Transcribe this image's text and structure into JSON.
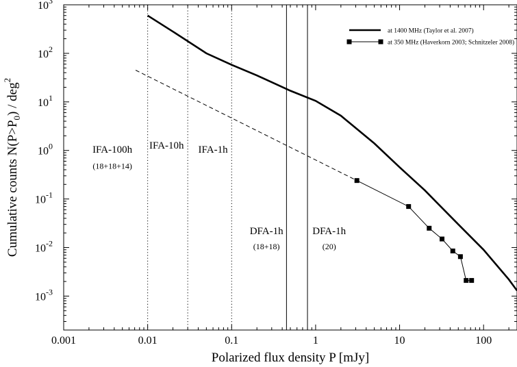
{
  "chart_data": {
    "type": "line",
    "x_scale": "log",
    "y_scale": "log",
    "xlim": [
      0.001,
      250
    ],
    "ylim": [
      0.0002,
      1000
    ],
    "xlabel": "Polarized flux density  P  [mJy]",
    "ylabel_main": "Cumulative counts  N(P>P",
    "ylabel_sub": "0",
    "ylabel_tail": ")  / deg",
    "ylabel_sup": "2",
    "x_ticks": [
      {
        "value": 0.001,
        "label": "0.001"
      },
      {
        "value": 0.01,
        "label": "0.01"
      },
      {
        "value": 0.1,
        "label": "0.1"
      },
      {
        "value": 1,
        "label": "1"
      },
      {
        "value": 10,
        "label": "10"
      },
      {
        "value": 100,
        "label": "100"
      }
    ],
    "y_ticks": [
      {
        "value": 0.001,
        "base": "10",
        "exp": "-3"
      },
      {
        "value": 0.01,
        "base": "10",
        "exp": "-2"
      },
      {
        "value": 0.1,
        "base": "10",
        "exp": "-1"
      },
      {
        "value": 1,
        "base": "10",
        "exp": "0"
      },
      {
        "value": 10,
        "base": "10",
        "exp": "1"
      },
      {
        "value": 100,
        "base": "10",
        "exp": "2"
      },
      {
        "value": 1000,
        "base": "10",
        "exp": "3"
      }
    ],
    "series": [
      {
        "name": "at 1400 MHz (Taylor et al. 2007)",
        "style": "solid-thick",
        "x": [
          0.01,
          0.02,
          0.05,
          0.1,
          0.2,
          0.5,
          1,
          2,
          5,
          10,
          20,
          50,
          100,
          200,
          250
        ],
        "y": [
          600,
          280,
          100,
          58,
          35,
          17,
          10.5,
          5.2,
          1.4,
          0.45,
          0.15,
          0.03,
          0.009,
          0.0022,
          0.0013
        ]
      },
      {
        "name": "at 350 MHz (Haverkorn 2003; Schnitzeler 2008)",
        "style": "solid-thin-markers",
        "x": [
          3.1,
          12.8,
          22.5,
          32,
          43,
          53,
          62,
          72
        ],
        "y": [
          0.24,
          0.07,
          0.025,
          0.015,
          0.0085,
          0.0065,
          0.0021,
          0.0021
        ]
      },
      {
        "style": "dashed",
        "x": [
          0.0072,
          3.1
        ],
        "y": [
          45,
          0.24
        ]
      }
    ],
    "vlines": [
      {
        "x": 0.01,
        "style": "dotted"
      },
      {
        "x": 0.03,
        "style": "dotted"
      },
      {
        "x": 0.1,
        "style": "dotted"
      },
      {
        "x": 0.45,
        "style": "solid"
      },
      {
        "x": 0.8,
        "style": "solid"
      }
    ],
    "annotations": [
      {
        "id": "ifa100",
        "text": "IFA-100h",
        "x": 0.0038,
        "y": 0.9,
        "size": "large"
      },
      {
        "id": "ifa100sub",
        "text": "(18+18+14)",
        "x": 0.0038,
        "y": 0.42,
        "size": "small"
      },
      {
        "id": "ifa10",
        "text": "IFA-10h",
        "x": 0.0168,
        "y": 1.1,
        "size": "large"
      },
      {
        "id": "ifa1",
        "text": "IFA-1h",
        "x": 0.06,
        "y": 0.9,
        "size": "large"
      },
      {
        "id": "dfa1a",
        "text": "DFA-1h",
        "x": 0.26,
        "y": 0.019,
        "size": "large"
      },
      {
        "id": "dfa1asub",
        "text": "(18+18)",
        "x": 0.26,
        "y": 0.0093,
        "size": "small"
      },
      {
        "id": "dfa1b",
        "text": "DFA-1h",
        "x": 1.45,
        "y": 0.019,
        "size": "large"
      },
      {
        "id": "dfa1bsub",
        "text": "(20)",
        "x": 1.45,
        "y": 0.0093,
        "size": "small"
      }
    ],
    "legend": {
      "position": "top-right",
      "entries": [
        {
          "label": "at 1400 MHz (Taylor et al. 2007)",
          "style": "solid-thick"
        },
        {
          "label": "at 350 MHz (Haverkorn 2003; Schnitzeler 2008)",
          "style": "solid-thin-markers"
        }
      ]
    }
  }
}
